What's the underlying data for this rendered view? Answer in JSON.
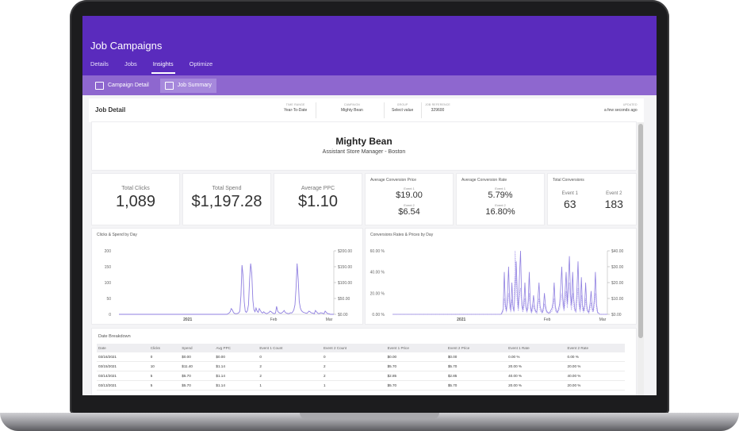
{
  "app": {
    "title": "Job Campaigns",
    "tabs": [
      {
        "label": "Details"
      },
      {
        "label": "Jobs"
      },
      {
        "label": "Insights",
        "active": true
      },
      {
        "label": "Optimize"
      }
    ],
    "subnav": [
      {
        "label": "Campaign Detail",
        "icon": "chart-icon"
      },
      {
        "label": "Job Summary",
        "icon": "summary-icon",
        "active": true
      }
    ]
  },
  "job_detail": {
    "title": "Job Detail",
    "time_range_label": "TIME RANGE",
    "time_range_value": "Year-To-Date",
    "campaign_label": "CAMPAIGN",
    "campaign_value": "Mighty Bean",
    "group_label": "GROUP",
    "group_value": "Select value",
    "job_reference_label": "JOB REFERENCE",
    "job_reference_value": "329600",
    "updated_label": "UPDATED",
    "updated_value": "a few seconds ago"
  },
  "job": {
    "name": "Mighty Bean",
    "position": "Assistant Store Manager - Boston"
  },
  "stats": {
    "total_clicks_label": "Total Clicks",
    "total_clicks_value": "1,089",
    "total_spend_label": "Total Spend",
    "total_spend_value": "$1,197.28",
    "avg_ppc_label": "Average PPC",
    "avg_ppc_value": "$1.10",
    "avg_conv_price_label": "Average Conversion Price",
    "avg_conv_price_e1_label": "Event 1",
    "avg_conv_price_e1_value": "$19.00",
    "avg_conv_price_e2_label": "Event 2",
    "avg_conv_price_e2_value": "$6.54",
    "avg_conv_rate_label": "Average Conversion Rate",
    "avg_conv_rate_e1_label": "Event 1",
    "avg_conv_rate_e1_value": "5.79%",
    "avg_conv_rate_e2_label": "Event 2",
    "avg_conv_rate_e2_value": "16.80%",
    "total_conv_label": "Total Conversions",
    "total_conv_e1_label": "Event 1",
    "total_conv_e1_value": "63",
    "total_conv_e2_label": "Event 2",
    "total_conv_e2_value": "183"
  },
  "chart_data": [
    {
      "type": "line",
      "title": "Clicks & Spend by Day",
      "y_ticks": [
        "200",
        "150",
        "100",
        "50",
        "0"
      ],
      "y2_ticks": [
        "$200.00",
        "$150.00",
        "$100.00",
        "$50.00",
        "$0.00"
      ],
      "x_ticks": [
        "2021",
        "Feb",
        "Mar"
      ],
      "ylim": [
        0,
        200
      ],
      "series": [
        {
          "values": [
            0,
            0,
            0,
            0,
            0,
            0,
            0,
            0,
            0,
            0,
            0,
            0,
            0,
            0,
            0,
            0,
            0,
            0,
            0,
            0,
            0,
            0,
            0,
            0,
            0,
            0,
            0,
            0,
            0,
            0,
            0,
            0,
            0,
            0,
            0,
            0,
            0,
            0,
            0,
            0,
            0,
            0,
            0,
            0,
            0,
            0,
            0,
            0,
            0,
            0,
            0,
            0,
            0,
            0,
            0,
            0,
            0,
            0,
            0,
            0,
            0,
            0,
            0,
            0,
            0,
            0,
            0,
            0,
            0,
            0,
            0,
            0,
            0,
            0,
            0,
            0,
            0,
            0,
            0,
            0,
            0,
            0,
            0,
            0,
            0,
            0,
            0,
            0,
            0,
            0,
            0,
            0,
            0,
            0,
            0,
            0,
            0,
            0,
            0,
            0,
            0,
            2,
            4,
            8,
            18,
            14,
            6,
            3,
            2,
            2,
            3,
            5,
            10,
            60,
            155,
            120,
            40,
            10,
            6,
            12,
            30,
            110,
            160,
            130,
            45,
            15,
            8,
            20,
            10,
            6,
            18,
            12,
            6,
            4,
            8,
            5,
            3,
            2,
            4,
            6,
            10,
            8,
            5,
            3,
            2,
            4,
            25,
            10,
            6,
            4,
            3,
            5,
            8,
            12,
            6,
            4,
            3,
            2,
            3,
            5,
            4,
            8,
            14,
            30,
            80,
            160,
            110,
            40,
            20,
            12,
            8,
            6,
            5,
            4,
            3,
            6,
            10,
            8,
            5,
            4,
            3,
            2,
            12,
            8,
            4,
            2,
            3,
            5,
            4,
            3,
            2,
            10,
            6,
            3,
            2,
            1,
            0,
            0,
            0,
            0
          ]
        }
      ]
    },
    {
      "type": "line",
      "title": "Conversions Rates & Prices by Day",
      "y_ticks": [
        "60.00 %",
        "40.00 %",
        "20.00 %",
        "0.00 %"
      ],
      "y2_ticks": [
        "$40.00",
        "$30.00",
        "$20.00",
        "$10.00",
        "$0.00"
      ],
      "x_ticks": [
        "2021",
        "Feb",
        "Mar"
      ],
      "ylim": [
        0,
        60
      ],
      "series": [
        {
          "values": [
            0,
            0,
            0,
            0,
            0,
            0,
            0,
            0,
            0,
            0,
            0,
            0,
            0,
            0,
            0,
            0,
            0,
            0,
            0,
            0,
            0,
            0,
            0,
            0,
            0,
            0,
            0,
            0,
            0,
            0,
            0,
            0,
            0,
            0,
            0,
            0,
            0,
            0,
            0,
            0,
            0,
            0,
            0,
            0,
            0,
            0,
            0,
            0,
            0,
            0,
            0,
            0,
            0,
            0,
            0,
            0,
            0,
            0,
            0,
            0,
            0,
            0,
            0,
            0,
            0,
            0,
            0,
            0,
            0,
            0,
            0,
            0,
            0,
            0,
            0,
            0,
            0,
            0,
            0,
            0,
            0,
            0,
            0,
            0,
            0,
            0,
            0,
            0,
            0,
            0,
            0,
            0,
            0,
            0,
            0,
            0,
            0,
            0,
            0,
            0,
            0,
            2,
            5,
            40,
            10,
            3,
            20,
            45,
            12,
            4,
            30,
            8,
            3,
            25,
            50,
            20,
            5,
            35,
            60,
            15,
            4,
            10,
            30,
            8,
            3,
            12,
            40,
            10,
            2,
            8,
            18,
            6,
            3,
            2,
            15,
            30,
            8,
            4,
            2,
            6,
            20,
            8,
            3,
            2,
            1,
            2,
            4,
            6,
            12,
            30,
            8,
            3,
            2,
            5,
            10,
            25,
            45,
            15,
            5,
            20,
            40,
            10,
            30,
            55,
            20,
            8,
            40,
            15,
            5,
            3,
            25,
            50,
            12,
            4,
            35,
            10,
            3,
            8,
            30,
            8,
            3,
            2,
            10,
            22,
            6,
            3,
            15,
            40,
            10,
            2,
            1,
            0,
            0,
            0,
            0,
            0,
            0,
            0,
            0
          ]
        },
        {
          "values": [
            0,
            0,
            0,
            0,
            0,
            0,
            0,
            0,
            0,
            0,
            0,
            0,
            0,
            0,
            0,
            0,
            0,
            0,
            0,
            0,
            0,
            0,
            0,
            0,
            0,
            0,
            0,
            0,
            0,
            0,
            0,
            0,
            0,
            0,
            0,
            0,
            0,
            0,
            0,
            0,
            0,
            0,
            0,
            0,
            0,
            0,
            0,
            0,
            0,
            0,
            0,
            0,
            0,
            0,
            0,
            0,
            0,
            0,
            0,
            0,
            0,
            0,
            0,
            0,
            0,
            0,
            0,
            0,
            0,
            0,
            0,
            0,
            0,
            0,
            0,
            0,
            0,
            0,
            0,
            0,
            0,
            0,
            0,
            0,
            0,
            0,
            0,
            0,
            0,
            0,
            0,
            0,
            0,
            0,
            0,
            0,
            0,
            0,
            0,
            0,
            0,
            1,
            3,
            15,
            6,
            2,
            10,
            20,
            6,
            2,
            14,
            5,
            2,
            60,
            30,
            10,
            3,
            18,
            25,
            8,
            2,
            5,
            15,
            4,
            2,
            6,
            20,
            5,
            1,
            4,
            9,
            3,
            2,
            1,
            8,
            15,
            4,
            2,
            1,
            3,
            10,
            4,
            2,
            1,
            1,
            1,
            2,
            3,
            6,
            15,
            4,
            2,
            1,
            3,
            5,
            12,
            20,
            8,
            3,
            10,
            22,
            6,
            15,
            30,
            10,
            4,
            20,
            8,
            3,
            2,
            12,
            25,
            6,
            2,
            18,
            5,
            2,
            4,
            15,
            4,
            2,
            1,
            5,
            11,
            3,
            2,
            8,
            20,
            5,
            1,
            1,
            0,
            0,
            0,
            0,
            0,
            0,
            0,
            0
          ]
        }
      ]
    }
  ],
  "table": {
    "title": "Date Breakdown",
    "columns": [
      "Date",
      "Clicks",
      "Spend",
      "Avg PPC",
      "Event 1 Count",
      "Event 2 Count",
      "Event 1 Price",
      "Event 2 Price",
      "Event 1 Rate",
      "Event 2 Rate"
    ],
    "rows": [
      [
        "03/16/2021",
        "0",
        "$0.00",
        "$0.00",
        "0",
        "0",
        "$0.00",
        "$0.00",
        "0.00 %",
        "0.00 %"
      ],
      [
        "03/15/2021",
        "10",
        "$11.40",
        "$1.14",
        "2",
        "2",
        "$5.70",
        "$5.70",
        "20.00 %",
        "20.00 %"
      ],
      [
        "03/14/2021",
        "5",
        "$5.70",
        "$1.14",
        "2",
        "2",
        "$2.85",
        "$2.85",
        "40.00 %",
        "40.00 %"
      ],
      [
        "03/13/2021",
        "5",
        "$5.70",
        "$1.14",
        "1",
        "1",
        "$5.70",
        "$5.70",
        "20.00 %",
        "20.00 %"
      ]
    ]
  }
}
